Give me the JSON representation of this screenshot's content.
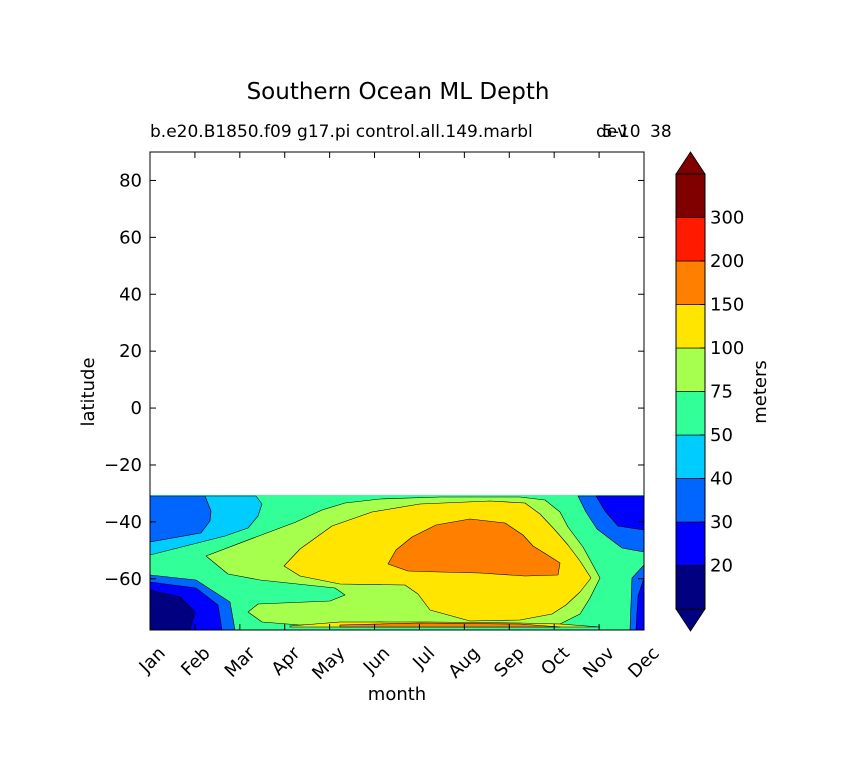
{
  "chart_data": {
    "type": "heatmap",
    "title": "Southern Ocean ML Depth",
    "subtitle_left": "b.e20.B1850.f09 g17.pi control.all.149.marbl",
    "subtitle_right_a": "5-10",
    "subtitle_right_b": "dev",
    "subtitle_right_c": "38",
    "xlabel": "month",
    "ylabel": "latitude",
    "colorbar_label": "meters",
    "x_ticks": [
      "Jan",
      "Feb",
      "Mar",
      "Apr",
      "May",
      "Jun",
      "Jul",
      "Aug",
      "Sep",
      "Oct",
      "Nov",
      "Dec"
    ],
    "y_ticks": [
      80,
      60,
      40,
      20,
      0,
      -20,
      -40,
      -60
    ],
    "ylim": [
      -78,
      90
    ],
    "data_lat_range": [
      -78,
      -32
    ],
    "levels": [
      20,
      30,
      40,
      50,
      75,
      100,
      150,
      200,
      300
    ],
    "level_colors": [
      "#000080",
      "#0000ff",
      "#0066ff",
      "#00ccff",
      "#33ff99",
      "#a6ff4d",
      "#ffe500",
      "#ff8000",
      "#ff1a00",
      "#800000"
    ],
    "extend": "both",
    "fields": [
      {
        "level": "below 20",
        "color": "#000080",
        "months": "Jan",
        "lat": "-78 to -68"
      },
      {
        "level": "20-30",
        "color": "#0000ff",
        "months": "Dec",
        "lat": "-40 to -32"
      },
      {
        "level": "30-40",
        "color": "#0066ff",
        "months": "Jan-Feb, Nov-Dec",
        "lat": "-44 to -32"
      },
      {
        "level": "40-50",
        "color": "#00ccff",
        "months": "Feb-Apr",
        "lat": "-45 to -32"
      },
      {
        "level": "50-75",
        "color": "#33ff99",
        "months": "Jan-Dec",
        "lat": "-78 to -32"
      },
      {
        "level": "75-100",
        "color": "#a6ff4d",
        "months": "Mar-Nov",
        "lat": "-70 to -36"
      },
      {
        "level": "100-150",
        "color": "#ffe500",
        "months": "May-Nov",
        "lat": "-78 to -38"
      },
      {
        "level": "150-200",
        "color": "#ff8000",
        "months": "Jul-Oct",
        "lat": "-63 to -44"
      }
    ]
  }
}
